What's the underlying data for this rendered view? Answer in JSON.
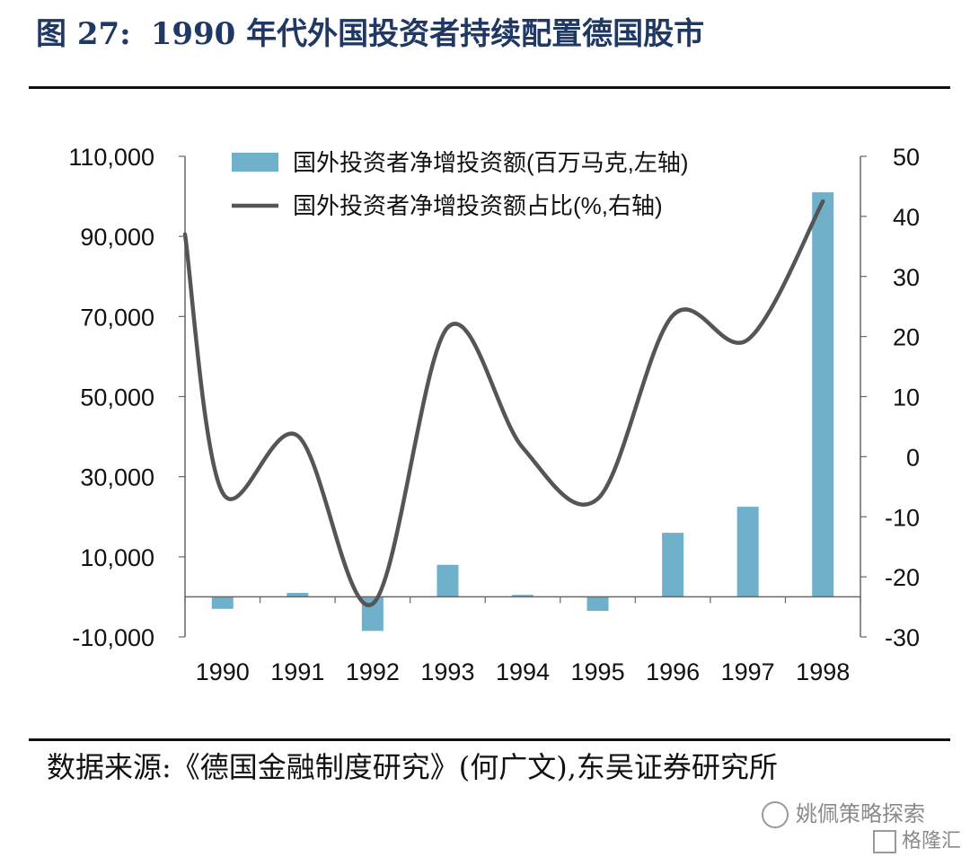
{
  "title": {
    "figure_no": "图 27:",
    "text": "1990 年代外国投资者持续配置德国股市"
  },
  "source": {
    "text": "数据来源:《德国金融制度研究》(何广文),东吴证券研究所"
  },
  "watermark": {
    "line1": "姚佩策略探索",
    "line2": "格隆汇"
  },
  "colors": {
    "bar": "#6fb1cb",
    "line": "#555555",
    "axis": "#666666",
    "title": "#1f3864"
  },
  "chart_data": {
    "type": "bar",
    "categories": [
      "1990",
      "1991",
      "1992",
      "1993",
      "1994",
      "1995",
      "1996",
      "1997",
      "1998"
    ],
    "ylim_left": [
      -10000,
      110000
    ],
    "yticks_left": [
      -10000,
      10000,
      30000,
      50000,
      70000,
      90000,
      110000
    ],
    "ytick_labels_left": [
      "-10,000",
      "10,000",
      "30,000",
      "50,000",
      "70,000",
      "90,000",
      "110,000"
    ],
    "ylim_right": [
      -30,
      50
    ],
    "yticks_right": [
      -30,
      -20,
      -10,
      0,
      10,
      20,
      30,
      40,
      50
    ],
    "ytick_labels_right": [
      "-30",
      "-20",
      "-10",
      "0",
      "10",
      "20",
      "30",
      "40",
      "50"
    ],
    "legend_position": "top",
    "series": [
      {
        "name": "国外投资者净增投资额(百万马克,左轴)",
        "type": "bar",
        "axis": "left",
        "values": [
          -3000,
          1000,
          -8500,
          8000,
          500,
          -3500,
          16000,
          22500,
          101000
        ]
      },
      {
        "name": "国外投资者净增投资额占比(%,右轴)",
        "type": "line",
        "axis": "right",
        "smooth": true,
        "values": [
          -6,
          3.5,
          -24.5,
          21.5,
          1.5,
          -7,
          23.5,
          19.5,
          42.5
        ],
        "start_value": 37
      }
    ]
  }
}
